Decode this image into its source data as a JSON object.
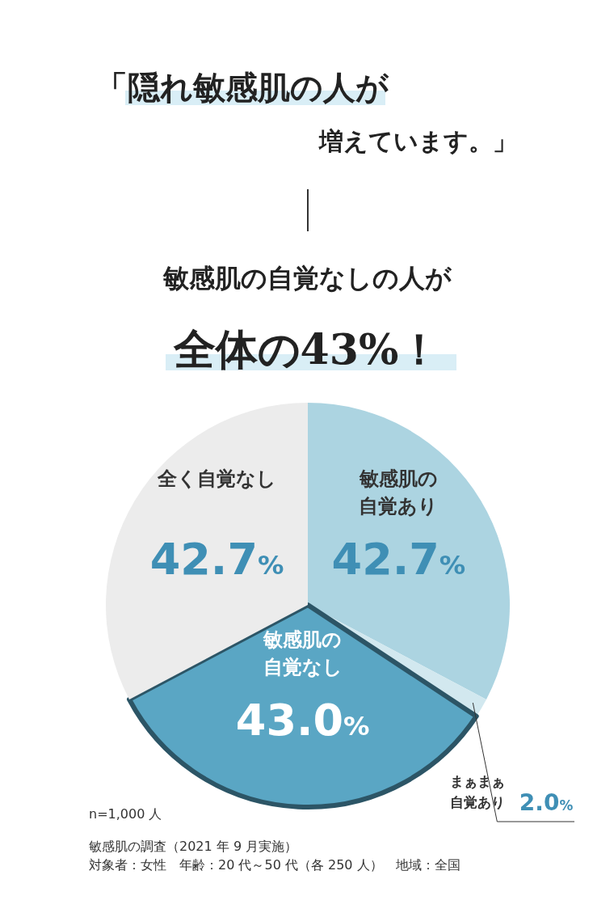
{
  "chart_data": {
    "type": "pie",
    "title": "「隠れ敏感肌の人が増えています。」",
    "subtitle": "敏感肌の自覚なしの人が全体の43%！",
    "categories": [
      "敏感肌の自覚あり",
      "まぁまぁ自覚あり",
      "敏感肌の自覚なし",
      "全く自覚なし"
    ],
    "values": [
      42.7,
      2.0,
      43.0,
      42.7
    ],
    "colors": [
      "#acd4e1",
      "#d2e8ef",
      "#5aa6c4",
      "#ececec"
    ],
    "value_labels": [
      "42.7%",
      "2.0%",
      "43.0%",
      "42.7%"
    ],
    "annotations": [
      "n=1,000 人",
      "敏感肌の調査（2021 年 9 月実施）",
      "対象者：女性　年齢：20 代～50 代（各 250 人）　地域：全国"
    ]
  }
}
